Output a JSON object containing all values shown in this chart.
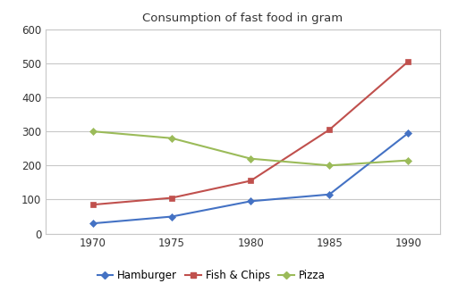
{
  "title": "Consumption of fast food in gram",
  "years": [
    1970,
    1975,
    1980,
    1985,
    1990
  ],
  "series": [
    {
      "name": "Hamburger",
      "values": [
        30,
        50,
        95,
        115,
        295
      ],
      "color": "#4472c4",
      "marker": "D"
    },
    {
      "name": "Fish & Chips",
      "values": [
        85,
        105,
        155,
        305,
        505
      ],
      "color": "#c0504d",
      "marker": "s"
    },
    {
      "name": "Pizza",
      "values": [
        300,
        280,
        220,
        200,
        215
      ],
      "color": "#9bbb59",
      "marker": "D"
    }
  ],
  "xlim": [
    1967,
    1992
  ],
  "ylim": [
    0,
    600
  ],
  "yticks": [
    0,
    100,
    200,
    300,
    400,
    500,
    600
  ],
  "xticks": [
    1970,
    1975,
    1980,
    1985,
    1990
  ],
  "bg_color": "#ffffff",
  "plot_bg_color": "#ffffff",
  "grid_color": "#c8c8c8",
  "border_color": "#c8c8c8",
  "title_fontsize": 9.5,
  "tick_fontsize": 8.5,
  "legend_fontsize": 8.5
}
